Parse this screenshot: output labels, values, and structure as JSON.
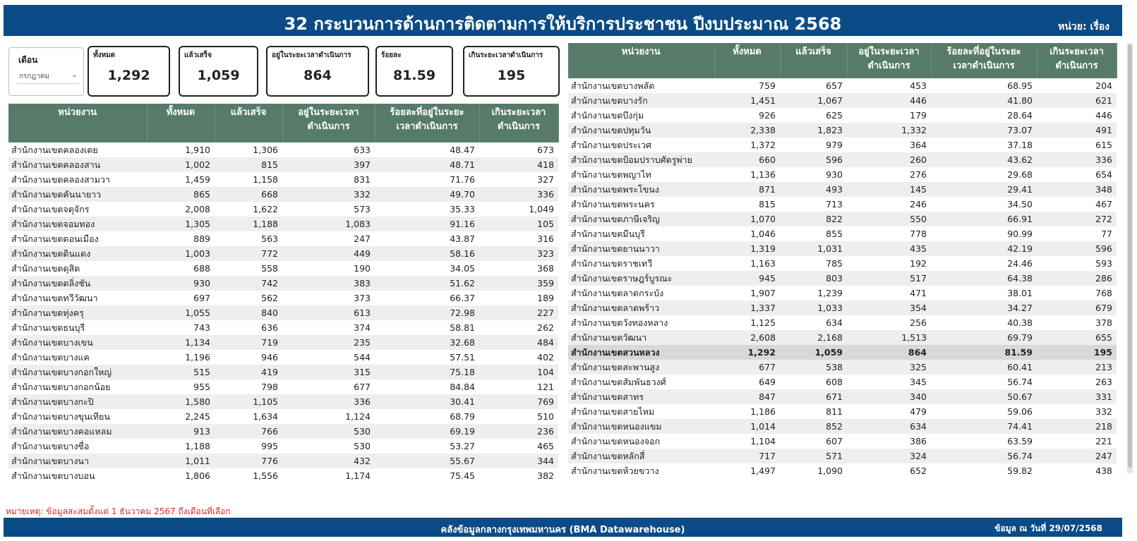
{
  "header": {
    "title": "32 กระบวนการด้านการติดตามการให้บริการประชาชน ปีงบประมาณ 2568",
    "unit": "หน่วย: เรื่อง"
  },
  "filter": {
    "label": "เดือน",
    "selected": "กรกฎาคม"
  },
  "cards": [
    {
      "label": "ทั้งหมด",
      "value": "1,292"
    },
    {
      "label": "แล้วเสร็จ",
      "value": "1,059"
    },
    {
      "label": "อยู่ในระยะเวลาดำเนินการ",
      "value": "864"
    },
    {
      "label": "ร้อยละ",
      "value": "81.59"
    },
    {
      "label": "เกินระยะเวลาดำเนินการ",
      "value": "195"
    }
  ],
  "table_headers": {
    "unit": "หน่วยงาน",
    "total": "ทั้งหมด",
    "done": "แล้วเสร็จ",
    "in_time_1": "อยู่ในระยะเวลา",
    "in_time_2": "ดำเนินการ",
    "pct_1": "ร้อยละที่อยู่ในระยะ",
    "pct_2": "เวลาดำเนินการ",
    "over_1": "เกินระยะเวลา",
    "over_2": "ดำเนินการ"
  },
  "left_rows": [
    [
      "สำนักงานเขตคลองเตย",
      "1,910",
      "1,306",
      "633",
      "48.47",
      "673"
    ],
    [
      "สำนักงานเขตคลองสาน",
      "1,002",
      "815",
      "397",
      "48.71",
      "418"
    ],
    [
      "สำนักงานเขตคลองสามวา",
      "1,459",
      "1,158",
      "831",
      "71.76",
      "327"
    ],
    [
      "สำนักงานเขตคันนายาว",
      "865",
      "668",
      "332",
      "49.70",
      "336"
    ],
    [
      "สำนักงานเขตจตุจักร",
      "2,008",
      "1,622",
      "573",
      "35.33",
      "1,049"
    ],
    [
      "สำนักงานเขตจอมทอง",
      "1,305",
      "1,188",
      "1,083",
      "91.16",
      "105"
    ],
    [
      "สำนักงานเขตดอนเมือง",
      "889",
      "563",
      "247",
      "43.87",
      "316"
    ],
    [
      "สำนักงานเขตดินแดง",
      "1,003",
      "772",
      "449",
      "58.16",
      "323"
    ],
    [
      "สำนักงานเขตดุสิต",
      "688",
      "558",
      "190",
      "34.05",
      "368"
    ],
    [
      "สำนักงานเขตตลิ่งชัน",
      "930",
      "742",
      "383",
      "51.62",
      "359"
    ],
    [
      "สำนักงานเขตทวีวัฒนา",
      "697",
      "562",
      "373",
      "66.37",
      "189"
    ],
    [
      "สำนักงานเขตทุ่งครุ",
      "1,055",
      "840",
      "613",
      "72.98",
      "227"
    ],
    [
      "สำนักงานเขตธนบุรี",
      "743",
      "636",
      "374",
      "58.81",
      "262"
    ],
    [
      "สำนักงานเขตบางเขน",
      "1,134",
      "719",
      "235",
      "32.68",
      "484"
    ],
    [
      "สำนักงานเขตบางแค",
      "1,196",
      "946",
      "544",
      "57.51",
      "402"
    ],
    [
      "สำนักงานเขตบางกอกใหญ่",
      "515",
      "419",
      "315",
      "75.18",
      "104"
    ],
    [
      "สำนักงานเขตบางกอกน้อย",
      "955",
      "798",
      "677",
      "84.84",
      "121"
    ],
    [
      "สำนักงานเขตบางกะปิ",
      "1,580",
      "1,105",
      "336",
      "30.41",
      "769"
    ],
    [
      "สำนักงานเขตบางขุนเทียน",
      "2,245",
      "1,634",
      "1,124",
      "68.79",
      "510"
    ],
    [
      "สำนักงานเขตบางคอแหลม",
      "913",
      "766",
      "530",
      "69.19",
      "236"
    ],
    [
      "สำนักงานเขตบางซื่อ",
      "1,188",
      "995",
      "530",
      "53.27",
      "465"
    ],
    [
      "สำนักงานเขตบางนา",
      "1,011",
      "776",
      "432",
      "55.67",
      "344"
    ],
    [
      "สำนักงานเขตบางบอน",
      "1,806",
      "1,556",
      "1,174",
      "75.45",
      "382"
    ]
  ],
  "right_rows": [
    [
      "สำนักงานเขตบางพลัด",
      "759",
      "657",
      "453",
      "68.95",
      "204"
    ],
    [
      "สำนักงานเขตบางรัก",
      "1,451",
      "1,067",
      "446",
      "41.80",
      "621"
    ],
    [
      "สำนักงานเขตบึงกุ่ม",
      "926",
      "625",
      "179",
      "28.64",
      "446"
    ],
    [
      "สำนักงานเขตปทุมวัน",
      "2,338",
      "1,823",
      "1,332",
      "73.07",
      "491"
    ],
    [
      "สำนักงานเขตประเวศ",
      "1,372",
      "979",
      "364",
      "37.18",
      "615"
    ],
    [
      "สำนักงานเขตป้อมปราบศัตรูพ่าย",
      "660",
      "596",
      "260",
      "43.62",
      "336"
    ],
    [
      "สำนักงานเขตพญาไท",
      "1,136",
      "930",
      "276",
      "29.68",
      "654"
    ],
    [
      "สำนักงานเขตพระโขนง",
      "871",
      "493",
      "145",
      "29.41",
      "348"
    ],
    [
      "สำนักงานเขตพระนคร",
      "815",
      "713",
      "246",
      "34.50",
      "467"
    ],
    [
      "สำนักงานเขตภาษีเจริญ",
      "1,070",
      "822",
      "550",
      "66.91",
      "272"
    ],
    [
      "สำนักงานเขตมีนบุรี",
      "1,046",
      "855",
      "778",
      "90.99",
      "77"
    ],
    [
      "สำนักงานเขตยานนาวา",
      "1,319",
      "1,031",
      "435",
      "42.19",
      "596"
    ],
    [
      "สำนักงานเขตราชเทวี",
      "1,163",
      "785",
      "192",
      "24.46",
      "593"
    ],
    [
      "สำนักงานเขตราษฎร์บูรณะ",
      "945",
      "803",
      "517",
      "64.38",
      "286"
    ],
    [
      "สำนักงานเขตลาดกระบัง",
      "1,907",
      "1,239",
      "471",
      "38.01",
      "768"
    ],
    [
      "สำนักงานเขตลาดพร้าว",
      "1,337",
      "1,033",
      "354",
      "34.27",
      "679"
    ],
    [
      "สำนักงานเขตวังทองหลาง",
      "1,125",
      "634",
      "256",
      "40.38",
      "378"
    ],
    [
      "สำนักงานเขตวัฒนา",
      "2,608",
      "2,168",
      "1,513",
      "69.79",
      "655"
    ],
    [
      "สำนักงานเขตสวนหลวง",
      "1,292",
      "1,059",
      "864",
      "81.59",
      "195"
    ],
    [
      "สำนักงานเขตสะพานสูง",
      "677",
      "538",
      "325",
      "60.41",
      "213"
    ],
    [
      "สำนักงานเขตสัมพันธวงศ์",
      "649",
      "608",
      "345",
      "56.74",
      "263"
    ],
    [
      "สำนักงานเขตสาทร",
      "847",
      "671",
      "340",
      "50.67",
      "331"
    ],
    [
      "สำนักงานเขตสายไหม",
      "1,186",
      "811",
      "479",
      "59.06",
      "332"
    ],
    [
      "สำนักงานเขตหนองแขม",
      "1,014",
      "852",
      "634",
      "74.41",
      "218"
    ],
    [
      "สำนักงานเขตหนองจอก",
      "1,104",
      "607",
      "386",
      "63.59",
      "221"
    ],
    [
      "สำนักงานเขตหลักสี่",
      "717",
      "571",
      "324",
      "56.74",
      "247"
    ],
    [
      "สำนักงานเขตห้วยขวาง",
      "1,497",
      "1,090",
      "652",
      "59.82",
      "438"
    ]
  ],
  "highlight_row": "สำนักงานเขตสวนหลวง",
  "note": "หมายเหตุ: ข้อมูลสะสมตั้งแต่ 1 ธันวาคม 2567 ถึงเดือนที่เลือก",
  "footer": {
    "source": "คลังข้อมูลกลางกรุงเทพมหานคร (BMA Datawarehouse)",
    "date": "ข้อมูล ณ วันที่ 29/07/2568"
  },
  "colors": {
    "header_bg": "#0b4b86",
    "table_header_bg": "#577b68",
    "note_text": "#d62b2b"
  }
}
